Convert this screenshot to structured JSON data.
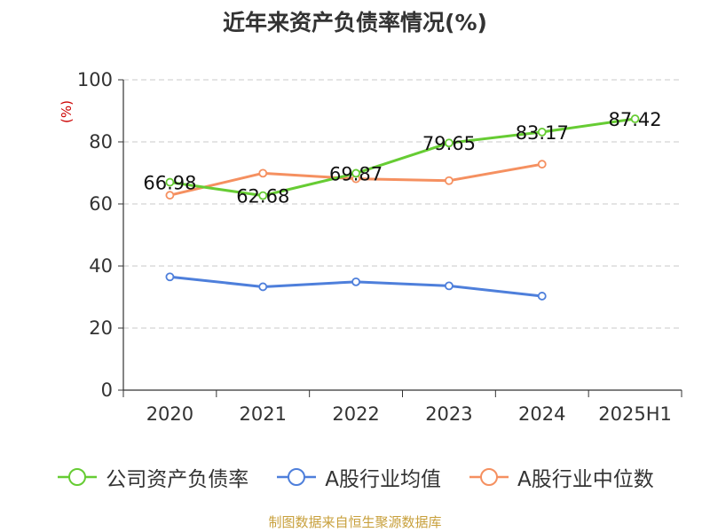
{
  "chart_data": {
    "type": "line",
    "title": "近年来资产负债率情况(%)",
    "ylabel": "(%)",
    "xlabel": "",
    "categories": [
      "2020",
      "2021",
      "2022",
      "2023",
      "2024",
      "2025H1"
    ],
    "ylim": [
      0,
      100
    ],
    "yticks": [
      0,
      20,
      40,
      60,
      80,
      100
    ],
    "grid": true,
    "legend_position": "bottom",
    "series": [
      {
        "name": "公司资产负债率",
        "color": "#66cc33",
        "values": [
          66.98,
          62.68,
          69.87,
          79.65,
          83.17,
          87.42
        ],
        "labels": [
          "66.98",
          "62.68",
          "69.87",
          "79.65",
          "83.17",
          "87.42"
        ]
      },
      {
        "name": "A股行业均值",
        "color": "#4e7fdb",
        "values": [
          36.5,
          33.3,
          34.9,
          33.6,
          30.3,
          null
        ]
      },
      {
        "name": "A股行业中位数",
        "color": "#f59060",
        "values": [
          62.8,
          69.9,
          68.1,
          67.5,
          72.8,
          null
        ]
      }
    ]
  },
  "source": "制图数据来自恒生聚源数据库"
}
